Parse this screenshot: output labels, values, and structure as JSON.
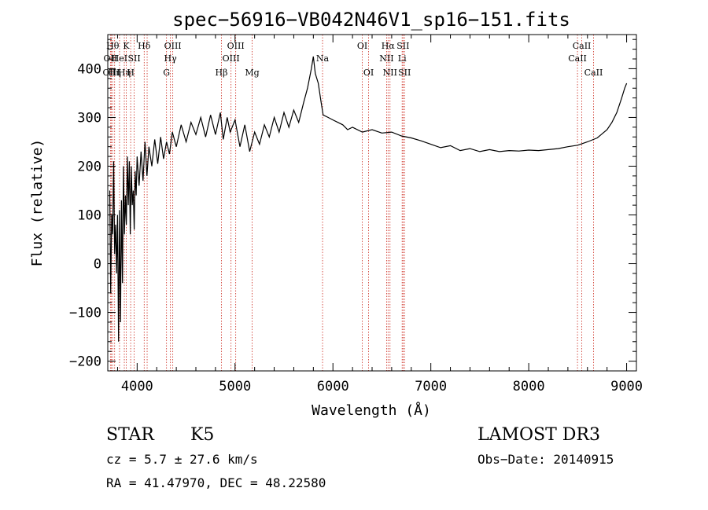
{
  "chart_data": {
    "type": "line",
    "title": "spec−56916−VB042N46V1_sp16−151.fits",
    "xlabel": "Wavelength (Å)",
    "ylabel": "Flux (relative)",
    "xlim": [
      3700,
      9100
    ],
    "ylim": [
      -220,
      470
    ],
    "x_ticks": [
      4000,
      5000,
      6000,
      7000,
      8000,
      9000
    ],
    "y_ticks": [
      -200,
      -100,
      0,
      100,
      200,
      300,
      400
    ],
    "y_tick_labels": [
      "−200",
      "−100",
      "0",
      "100",
      "200",
      "300",
      "400"
    ],
    "series": [
      {
        "name": "flux",
        "points": [
          [
            3720,
            150
          ],
          [
            3730,
            -60
          ],
          [
            3740,
            100
          ],
          [
            3750,
            60
          ],
          [
            3760,
            210
          ],
          [
            3770,
            20
          ],
          [
            3780,
            80
          ],
          [
            3790,
            -20
          ],
          [
            3800,
            100
          ],
          [
            3810,
            -160
          ],
          [
            3820,
            110
          ],
          [
            3830,
            -120
          ],
          [
            3840,
            130
          ],
          [
            3850,
            -40
          ],
          [
            3860,
            200
          ],
          [
            3870,
            60
          ],
          [
            3880,
            140
          ],
          [
            3890,
            80
          ],
          [
            3900,
            220
          ],
          [
            3910,
            120
          ],
          [
            3920,
            210
          ],
          [
            3930,
            60
          ],
          [
            3940,
            200
          ],
          [
            3950,
            120
          ],
          [
            3960,
            150
          ],
          [
            3970,
            70
          ],
          [
            3980,
            190
          ],
          [
            3990,
            140
          ],
          [
            4000,
            220
          ],
          [
            4020,
            160
          ],
          [
            4040,
            230
          ],
          [
            4060,
            170
          ],
          [
            4080,
            250
          ],
          [
            4100,
            180
          ],
          [
            4120,
            240
          ],
          [
            4150,
            200
          ],
          [
            4180,
            255
          ],
          [
            4210,
            205
          ],
          [
            4240,
            260
          ],
          [
            4270,
            215
          ],
          [
            4300,
            250
          ],
          [
            4330,
            225
          ],
          [
            4360,
            270
          ],
          [
            4400,
            240
          ],
          [
            4450,
            285
          ],
          [
            4500,
            250
          ],
          [
            4550,
            290
          ],
          [
            4600,
            265
          ],
          [
            4650,
            300
          ],
          [
            4700,
            260
          ],
          [
            4750,
            305
          ],
          [
            4800,
            265
          ],
          [
            4850,
            310
          ],
          [
            4880,
            255
          ],
          [
            4920,
            300
          ],
          [
            4950,
            270
          ],
          [
            5000,
            295
          ],
          [
            5050,
            240
          ],
          [
            5100,
            285
          ],
          [
            5150,
            230
          ],
          [
            5200,
            270
          ],
          [
            5250,
            245
          ],
          [
            5300,
            285
          ],
          [
            5350,
            260
          ],
          [
            5400,
            300
          ],
          [
            5450,
            270
          ],
          [
            5500,
            310
          ],
          [
            5550,
            280
          ],
          [
            5600,
            315
          ],
          [
            5650,
            290
          ],
          [
            5700,
            330
          ],
          [
            5740,
            360
          ],
          [
            5780,
            400
          ],
          [
            5800,
            425
          ],
          [
            5820,
            390
          ],
          [
            5850,
            370
          ],
          [
            5880,
            330
          ],
          [
            5900,
            305
          ],
          [
            5950,
            300
          ],
          [
            6000,
            295
          ],
          [
            6050,
            290
          ],
          [
            6100,
            285
          ],
          [
            6150,
            275
          ],
          [
            6200,
            280
          ],
          [
            6300,
            270
          ],
          [
            6400,
            275
          ],
          [
            6500,
            268
          ],
          [
            6600,
            270
          ],
          [
            6700,
            262
          ],
          [
            6800,
            258
          ],
          [
            6900,
            252
          ],
          [
            7000,
            245
          ],
          [
            7100,
            238
          ],
          [
            7200,
            242
          ],
          [
            7300,
            232
          ],
          [
            7400,
            236
          ],
          [
            7500,
            230
          ],
          [
            7600,
            234
          ],
          [
            7700,
            230
          ],
          [
            7800,
            232
          ],
          [
            7900,
            231
          ],
          [
            8000,
            233
          ],
          [
            8100,
            232
          ],
          [
            8200,
            234
          ],
          [
            8300,
            236
          ],
          [
            8400,
            240
          ],
          [
            8500,
            243
          ],
          [
            8600,
            250
          ],
          [
            8700,
            258
          ],
          [
            8800,
            275
          ],
          [
            8850,
            290
          ],
          [
            8900,
            310
          ],
          [
            8950,
            340
          ],
          [
            8980,
            360
          ],
          [
            9000,
            370
          ]
        ]
      }
    ],
    "line_markers": [
      {
        "wavelength": 3727,
        "label": "OII",
        "row": 2
      },
      {
        "wavelength": 3736,
        "label": "OIII",
        "row": 3
      },
      {
        "wavelength": 3750,
        "label": "Hθ",
        "row": 1
      },
      {
        "wavelength": 3770,
        "label": "Hη",
        "row": 3
      },
      {
        "wavelength": 3820,
        "label": "HeI",
        "row": 2
      },
      {
        "wavelength": 3869,
        "label": "Hη",
        "row": 3
      },
      {
        "wavelength": 3889,
        "label": "K",
        "row": 1
      },
      {
        "wavelength": 3934,
        "label": "H",
        "row": 3
      },
      {
        "wavelength": 3970,
        "label": "SII",
        "row": 2
      },
      {
        "wavelength": 4072,
        "label": "Hδ",
        "row": 1
      },
      {
        "wavelength": 4102,
        "label": "",
        "row": 0
      },
      {
        "wavelength": 4300,
        "label": "G",
        "row": 3
      },
      {
        "wavelength": 4340,
        "label": "Hγ",
        "row": 2
      },
      {
        "wavelength": 4364,
        "label": "OIII",
        "row": 1
      },
      {
        "wavelength": 4861,
        "label": "Hβ",
        "row": 3
      },
      {
        "wavelength": 4959,
        "label": "OIII",
        "row": 2
      },
      {
        "wavelength": 5007,
        "label": "OIII",
        "row": 1
      },
      {
        "wavelength": 5175,
        "label": "Mg",
        "row": 3
      },
      {
        "wavelength": 5894,
        "label": "Na",
        "row": 2
      },
      {
        "wavelength": 6300,
        "label": "OI",
        "row": 1
      },
      {
        "wavelength": 6364,
        "label": "OI",
        "row": 3
      },
      {
        "wavelength": 6548,
        "label": "NII",
        "row": 2
      },
      {
        "wavelength": 6563,
        "label": "Hα",
        "row": 1
      },
      {
        "wavelength": 6583,
        "label": "NII",
        "row": 3
      },
      {
        "wavelength": 6707,
        "label": "Li",
        "row": 2
      },
      {
        "wavelength": 6716,
        "label": "SII",
        "row": 1
      },
      {
        "wavelength": 6731,
        "label": "SII",
        "row": 3
      },
      {
        "wavelength": 8498,
        "label": "CaII",
        "row": 2
      },
      {
        "wavelength": 8542,
        "label": "CaII",
        "row": 1
      },
      {
        "wavelength": 8662,
        "label": "CaII",
        "row": 3
      }
    ]
  },
  "info": {
    "object_class": "STAR",
    "subclass": "K5",
    "survey": "LAMOST DR3",
    "cz": "cz = 5.7 ± 27.6 km/s",
    "obs_date": "Obs−Date: 20140915",
    "coords": "RA =  41.47970, DEC =  48.22580"
  },
  "colors": {
    "axis": "#000000",
    "spectrum": "#000000",
    "marker": "#cc2a1e"
  }
}
